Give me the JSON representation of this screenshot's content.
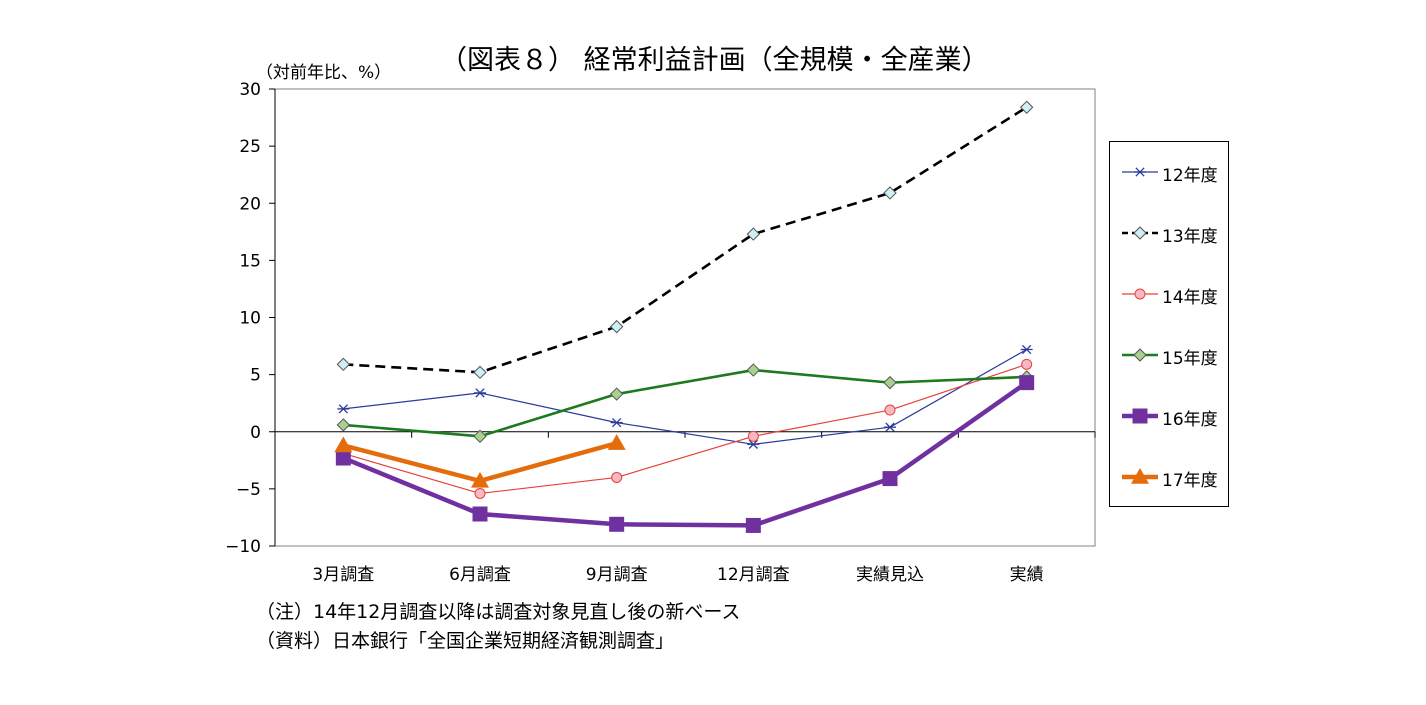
{
  "chart_data": {
    "type": "line",
    "title": "（図表８） 経常利益計画（全規模・全産業）",
    "ylabel": "（対前年比、%）",
    "xlabel": "",
    "categories": [
      "3月調査",
      "6月調査",
      "9月調査",
      "12月調査",
      "実績見込",
      "実績"
    ],
    "ylim": [
      -10,
      30
    ],
    "yticks": [
      "30",
      "25",
      "20",
      "15",
      "10",
      "5",
      "0",
      "−5",
      "−10"
    ],
    "ytick_values": [
      30,
      25,
      20,
      15,
      10,
      5,
      0,
      -5,
      -10
    ],
    "grid": false,
    "legend_position": "right",
    "series": [
      {
        "name": "12年度",
        "color": "#2b3a9c",
        "marker": "star",
        "dash": "solid",
        "weight": "thin",
        "values": [
          2.0,
          3.4,
          0.8,
          -1.1,
          0.4,
          7.2
        ]
      },
      {
        "name": "13年度",
        "color": "#000000",
        "marker": "diamond-open",
        "dash": "dashed",
        "weight": "medium",
        "values": [
          5.9,
          5.2,
          9.2,
          17.3,
          20.9,
          28.4
        ]
      },
      {
        "name": "14年度",
        "color": "#e8413c",
        "marker": "circle",
        "dash": "solid",
        "weight": "thin",
        "values": [
          -1.9,
          -5.4,
          -4.0,
          -0.4,
          1.9,
          5.9
        ]
      },
      {
        "name": "15年度",
        "color": "#1e7a1e",
        "marker": "diamond",
        "dash": "solid",
        "weight": "medium",
        "values": [
          0.6,
          -0.4,
          3.3,
          5.4,
          4.3,
          4.8
        ]
      },
      {
        "name": "16年度",
        "color": "#7030a0",
        "marker": "square",
        "dash": "solid",
        "weight": "thick",
        "values": [
          -2.3,
          -7.2,
          -8.1,
          -8.2,
          -4.1,
          4.3
        ]
      },
      {
        "name": "17年度",
        "color": "#e46c0a",
        "marker": "triangle",
        "dash": "solid",
        "weight": "thick",
        "values": [
          -1.2,
          -4.3,
          -1.0,
          null,
          null,
          null
        ]
      }
    ]
  },
  "notes": {
    "note1": "（注）14年12月調査以降は調査対象見直し後の新ベース",
    "note2": "（資料）日本銀行「全国企業短期経済観測調査」"
  }
}
